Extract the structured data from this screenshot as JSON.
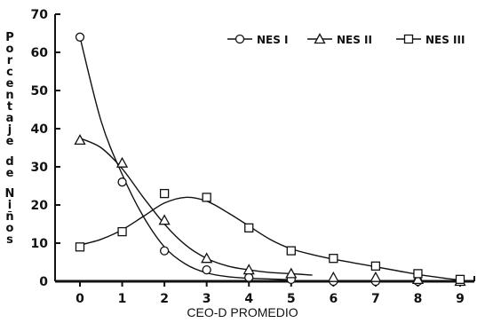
{
  "chart_data": {
    "type": "line",
    "xlabel": "CEO-D PROMEDIO",
    "ylabel_words": [
      "Porcentaje",
      "de",
      "Niños"
    ],
    "xlim": [
      0,
      9
    ],
    "ylim": [
      0,
      70
    ],
    "xticks": [
      "0",
      "1",
      "2",
      "3",
      "4",
      "5",
      "6",
      "7",
      "8",
      "9"
    ],
    "yticks": [
      "0",
      "10",
      "20",
      "30",
      "40",
      "50",
      "60",
      "70"
    ],
    "legend_position": "top-right",
    "series": [
      {
        "name": "NES I",
        "marker": "circle",
        "points": [
          [
            0,
            64
          ],
          [
            1,
            26
          ],
          [
            2,
            8
          ],
          [
            3,
            3
          ],
          [
            4,
            1
          ],
          [
            5,
            0.5
          ],
          [
            6,
            0
          ],
          [
            7,
            0
          ],
          [
            8,
            0
          ],
          [
            9,
            0
          ]
        ],
        "curve": [
          [
            0,
            64
          ],
          [
            0.5,
            42
          ],
          [
            1,
            28
          ],
          [
            1.5,
            17
          ],
          [
            2,
            9
          ],
          [
            2.5,
            4.5
          ],
          [
            3,
            2.2
          ],
          [
            3.5,
            1.2
          ],
          [
            4,
            0.8
          ],
          [
            4.5,
            0.6
          ],
          [
            5,
            0.4
          ]
        ]
      },
      {
        "name": "NES II",
        "marker": "triangle",
        "points": [
          [
            0,
            37
          ],
          [
            1,
            31
          ],
          [
            2,
            16
          ],
          [
            3,
            6
          ],
          [
            4,
            3
          ],
          [
            5,
            2
          ],
          [
            6,
            1
          ],
          [
            7,
            1
          ],
          [
            8,
            0.5
          ],
          [
            9,
            0
          ]
        ],
        "curve": [
          [
            0,
            37.5
          ],
          [
            0.5,
            35
          ],
          [
            1,
            29.5
          ],
          [
            1.5,
            22
          ],
          [
            2,
            15
          ],
          [
            2.5,
            9.5
          ],
          [
            3,
            6
          ],
          [
            3.5,
            4
          ],
          [
            4,
            3
          ],
          [
            4.5,
            2.3
          ],
          [
            5,
            2
          ],
          [
            5.5,
            1.6
          ]
        ]
      },
      {
        "name": "NES III",
        "marker": "square",
        "points": [
          [
            0,
            9
          ],
          [
            1,
            13
          ],
          [
            2,
            23
          ],
          [
            3,
            22
          ],
          [
            4,
            14
          ],
          [
            5,
            8
          ],
          [
            6,
            6
          ],
          [
            7,
            4
          ],
          [
            8,
            2
          ],
          [
            9,
            0.5
          ]
        ],
        "curve": [
          [
            0,
            9.5
          ],
          [
            0.5,
            11
          ],
          [
            1,
            13.5
          ],
          [
            1.5,
            17
          ],
          [
            2,
            20.5
          ],
          [
            2.5,
            22
          ],
          [
            3,
            21
          ],
          [
            3.5,
            18
          ],
          [
            4,
            14.5
          ],
          [
            4.5,
            11
          ],
          [
            5,
            8.5
          ],
          [
            5.5,
            7
          ],
          [
            6,
            5.8
          ],
          [
            6.5,
            4.8
          ],
          [
            7,
            3.8
          ],
          [
            7.5,
            2.8
          ],
          [
            8,
            1.8
          ],
          [
            8.5,
            1
          ],
          [
            9,
            0.3
          ]
        ]
      }
    ]
  }
}
